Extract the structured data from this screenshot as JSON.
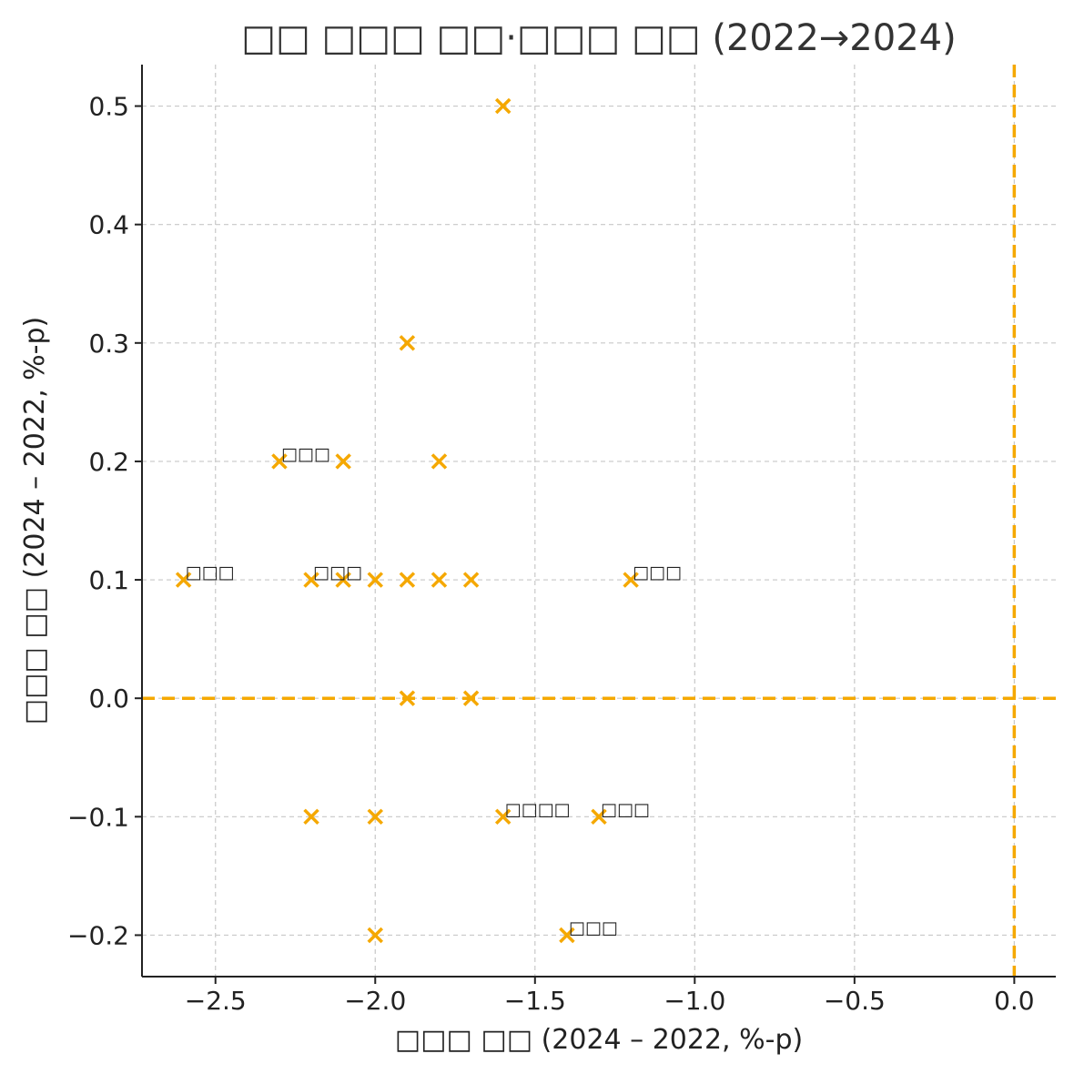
{
  "chart_data": {
    "type": "scatter",
    "title": "□□ □□□ □□·□□□ □□ (2022→2024)",
    "xlabel": "□□□ □□ (2024 – 2022, %-p)",
    "ylabel": "□□□ □□ (2024 – 2022, %-p)",
    "xlim": [
      -2.73,
      0.13
    ],
    "ylim": [
      -0.235,
      0.535
    ],
    "xticks": [
      -2.5,
      -2.0,
      -1.5,
      -1.0,
      -0.5,
      0.0
    ],
    "xtick_labels": [
      "−2.5",
      "−2.0",
      "−1.5",
      "−1.0",
      "−0.5",
      "0.0"
    ],
    "yticks": [
      -0.2,
      -0.1,
      0.0,
      0.1,
      0.2,
      0.3,
      0.4,
      0.5
    ],
    "ytick_labels": [
      "−0.2",
      "−0.1",
      "0.0",
      "0.1",
      "0.2",
      "0.3",
      "0.4",
      "0.5"
    ],
    "grid": true,
    "reference_lines": {
      "x": 0.0,
      "y": 0.0
    },
    "color": "#F5A800",
    "marker": "x",
    "points": [
      {
        "x": -1.6,
        "y": 0.5,
        "label": ""
      },
      {
        "x": -1.9,
        "y": 0.3,
        "label": ""
      },
      {
        "x": -2.3,
        "y": 0.2,
        "label": "□□□"
      },
      {
        "x": -2.1,
        "y": 0.2,
        "label": ""
      },
      {
        "x": -1.8,
        "y": 0.2,
        "label": ""
      },
      {
        "x": -2.6,
        "y": 0.1,
        "label": "□□□"
      },
      {
        "x": -2.2,
        "y": 0.1,
        "label": "□□□"
      },
      {
        "x": -2.1,
        "y": 0.1,
        "label": ""
      },
      {
        "x": -2.0,
        "y": 0.1,
        "label": ""
      },
      {
        "x": -1.9,
        "y": 0.1,
        "label": ""
      },
      {
        "x": -1.8,
        "y": 0.1,
        "label": ""
      },
      {
        "x": -1.7,
        "y": 0.1,
        "label": ""
      },
      {
        "x": -1.2,
        "y": 0.1,
        "label": "□□□"
      },
      {
        "x": -1.9,
        "y": 0.0,
        "label": ""
      },
      {
        "x": -1.7,
        "y": 0.0,
        "label": ""
      },
      {
        "x": -2.2,
        "y": -0.1,
        "label": ""
      },
      {
        "x": -2.0,
        "y": -0.1,
        "label": ""
      },
      {
        "x": -1.6,
        "y": -0.1,
        "label": "□□□□"
      },
      {
        "x": -1.3,
        "y": -0.1,
        "label": "□□□"
      },
      {
        "x": -2.0,
        "y": -0.2,
        "label": ""
      },
      {
        "x": -1.4,
        "y": -0.2,
        "label": "□□□"
      }
    ]
  }
}
